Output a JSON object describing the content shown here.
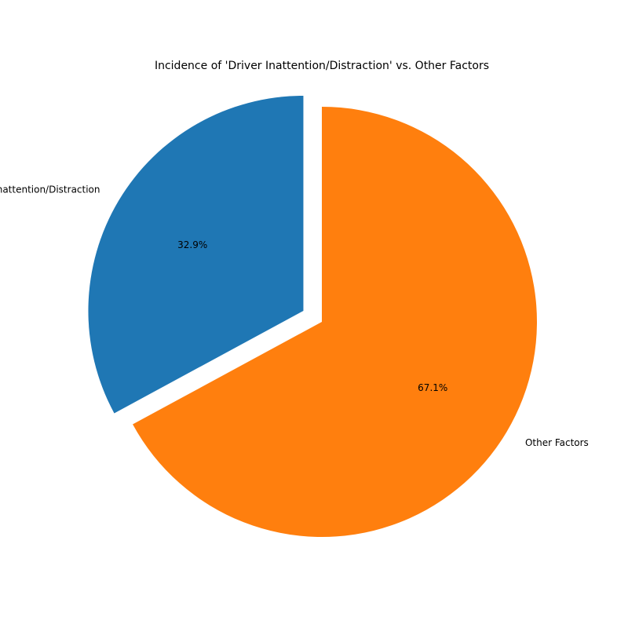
{
  "chart_data": {
    "type": "pie",
    "title": "Incidence of 'Driver Inattention/Distraction' vs. Other Factors",
    "categories": [
      "Driver Inattention/Distraction",
      "Other Factors"
    ],
    "values": [
      32.9,
      67.1
    ],
    "value_labels": [
      "32.9%",
      "67.1%"
    ],
    "colors": [
      "#1f77b4",
      "#ff7f0e"
    ],
    "exploded": [
      true,
      false
    ],
    "start_angle_deg": 90,
    "direction": "counterclockwise"
  }
}
